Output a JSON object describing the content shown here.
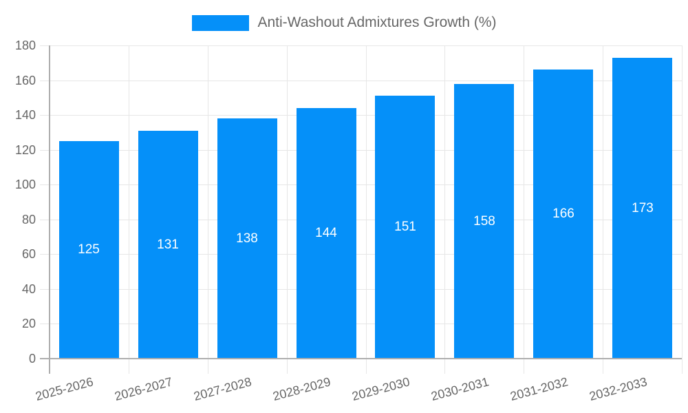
{
  "legend": {
    "label": "Anti-Washout Admixtures Growth (%)"
  },
  "chart_data": {
    "type": "bar",
    "title": "Anti-Washout Admixtures Growth (%)",
    "categories": [
      "2025-2026",
      "2026-2027",
      "2027-2028",
      "2028-2029",
      "2029-2030",
      "2030-2031",
      "2031-2032",
      "2032-2033"
    ],
    "values": [
      125,
      131,
      138,
      144,
      151,
      158,
      166,
      173
    ],
    "xlabel": "",
    "ylabel": "",
    "ylim": [
      0,
      180
    ],
    "ytick_step": 20,
    "ytick_labels": [
      "0",
      "20",
      "40",
      "60",
      "80",
      "100",
      "120",
      "140",
      "160",
      "180"
    ],
    "grid": true,
    "legend_position": "top",
    "value_labels_position": "inside-center"
  },
  "colors": {
    "bar": "#0590f9",
    "grid": "#e6e6e6",
    "axis": "#aeaeae",
    "text": "#666666",
    "value_label": "#ffffff",
    "background": "#ffffff"
  }
}
